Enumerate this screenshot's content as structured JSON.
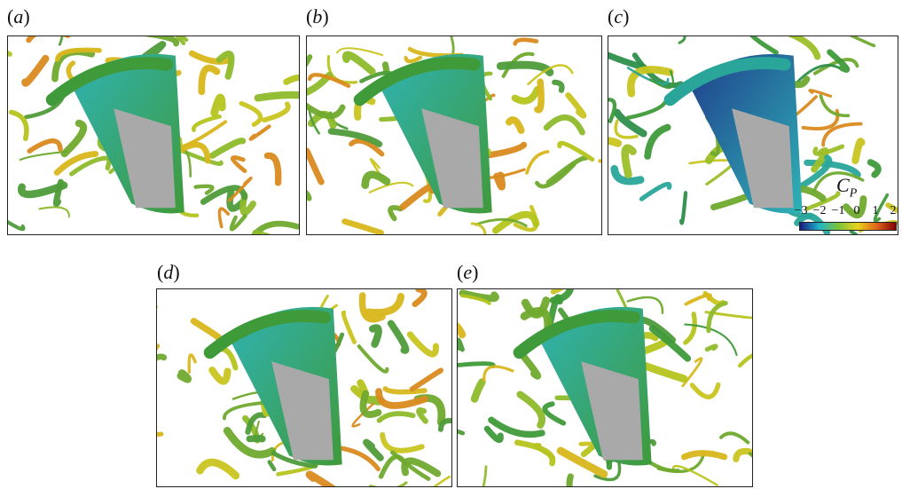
{
  "panels": [
    {
      "id": "a",
      "label": "a"
    },
    {
      "id": "b",
      "label": "b"
    },
    {
      "id": "c",
      "label": "c"
    },
    {
      "id": "d",
      "label": "d"
    },
    {
      "id": "e",
      "label": "e"
    }
  ],
  "colorbar": {
    "title_main": "C",
    "title_sub": "P",
    "ticks": [
      "−3",
      "−2",
      "−1",
      "0",
      "1",
      "2"
    ],
    "range": [
      -3,
      2
    ],
    "colors": [
      "#1a1a80",
      "#1fb5c9",
      "#7cc43a",
      "#e8d21a",
      "#e0641a",
      "#800000"
    ]
  },
  "colors": {
    "body_gray": "#a9a9a9",
    "vortex_green": "#3f9a3a",
    "vortex_yellow": "#c9c41f",
    "vortex_orange": "#d98a1e",
    "surface_cyan": "#2fb3b5",
    "surface_blue": "#1f3d8c"
  }
}
